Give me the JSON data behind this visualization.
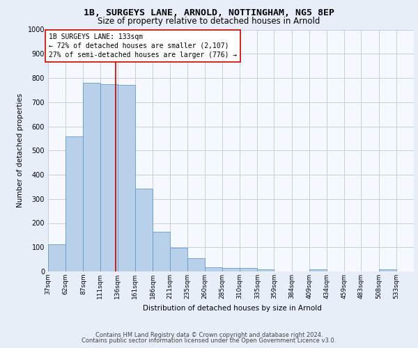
{
  "title1": "1B, SURGEYS LANE, ARNOLD, NOTTINGHAM, NG5 8EP",
  "title2": "Size of property relative to detached houses in Arnold",
  "xlabel": "Distribution of detached houses by size in Arnold",
  "ylabel": "Number of detached properties",
  "footer1": "Contains HM Land Registry data © Crown copyright and database right 2024.",
  "footer2": "Contains public sector information licensed under the Open Government Licence v3.0.",
  "annotation_line1": "1B SURGEYS LANE: 133sqm",
  "annotation_line2": "← 72% of detached houses are smaller (2,107)",
  "annotation_line3": "27% of semi-detached houses are larger (776) →",
  "bar_color": "#b8d0ea",
  "bar_edge_color": "#6699cc",
  "marker_color": "#cc0000",
  "marker_value": 133,
  "categories": [
    "37sqm",
    "62sqm",
    "87sqm",
    "111sqm",
    "136sqm",
    "161sqm",
    "186sqm",
    "211sqm",
    "235sqm",
    "260sqm",
    "285sqm",
    "310sqm",
    "335sqm",
    "359sqm",
    "384sqm",
    "409sqm",
    "434sqm",
    "459sqm",
    "483sqm",
    "508sqm",
    "533sqm"
  ],
  "bin_edges": [
    37,
    62,
    87,
    111,
    136,
    161,
    186,
    211,
    235,
    260,
    285,
    310,
    335,
    359,
    384,
    409,
    434,
    459,
    483,
    508,
    533,
    558
  ],
  "values": [
    112,
    557,
    780,
    775,
    770,
    343,
    165,
    98,
    55,
    18,
    14,
    14,
    10,
    0,
    0,
    8,
    0,
    0,
    0,
    8,
    0
  ],
  "ylim": [
    0,
    1000
  ],
  "yticks": [
    0,
    100,
    200,
    300,
    400,
    500,
    600,
    700,
    800,
    900,
    1000
  ],
  "bg_color": "#e8eef8",
  "plot_bg_color": "#f5f8ff",
  "grid_color": "#c8cce0",
  "title1_fontsize": 9.5,
  "title2_fontsize": 8.5,
  "ylabel_fontsize": 7.5,
  "xlabel_fontsize": 7.5,
  "tick_fontsize": 6.5,
  "footer_fontsize": 6.0,
  "annotation_fontsize": 7.0
}
